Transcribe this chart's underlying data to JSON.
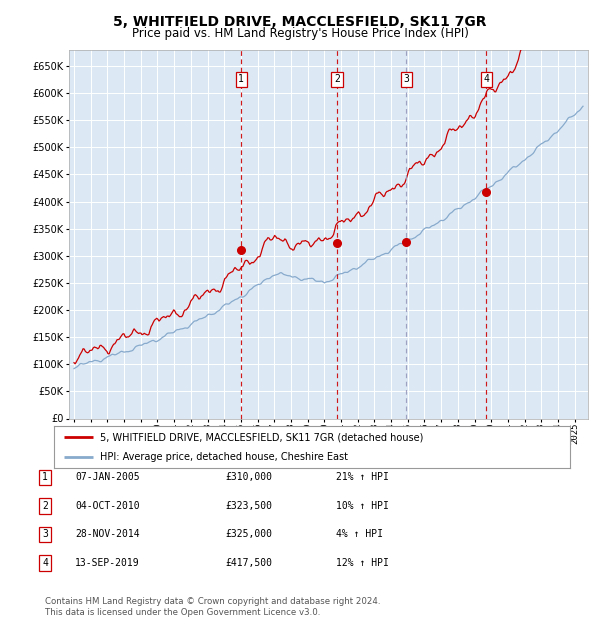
{
  "title": "5, WHITFIELD DRIVE, MACCLESFIELD, SK11 7GR",
  "subtitle": "Price paid vs. HM Land Registry's House Price Index (HPI)",
  "ylim": [
    0,
    680000
  ],
  "yticks": [
    0,
    50000,
    100000,
    150000,
    200000,
    250000,
    300000,
    350000,
    400000,
    450000,
    500000,
    550000,
    600000,
    650000
  ],
  "xlim_start": 1994.7,
  "xlim_end": 2025.8,
  "plot_bg_color": "#dce9f5",
  "grid_color": "#ffffff",
  "sale_dates": [
    2005.02,
    2010.75,
    2014.91,
    2019.71
  ],
  "sale_prices": [
    310000,
    323500,
    325000,
    417500
  ],
  "sale_labels": [
    "1",
    "2",
    "3",
    "4"
  ],
  "vline_colors_solid": [
    "#cc0000",
    "#cc0000",
    "#9999bb",
    "#cc0000"
  ],
  "legend_property_label": "5, WHITFIELD DRIVE, MACCLESFIELD, SK11 7GR (detached house)",
  "legend_hpi_label": "HPI: Average price, detached house, Cheshire East",
  "table_entries": [
    {
      "num": "1",
      "date": "07-JAN-2005",
      "price": "£310,000",
      "change": "21% ↑ HPI"
    },
    {
      "num": "2",
      "date": "04-OCT-2010",
      "price": "£323,500",
      "change": "10% ↑ HPI"
    },
    {
      "num": "3",
      "date": "28-NOV-2014",
      "price": "£325,000",
      "change": "4% ↑ HPI"
    },
    {
      "num": "4",
      "date": "13-SEP-2019",
      "price": "£417,500",
      "change": "12% ↑ HPI"
    }
  ],
  "footer_text": "Contains HM Land Registry data © Crown copyright and database right 2024.\nThis data is licensed under the Open Government Licence v3.0.",
  "property_line_color": "#cc0000",
  "hpi_line_color": "#88aacc",
  "marker_color": "#cc0000",
  "title_fontsize": 10,
  "subtitle_fontsize": 8.5
}
